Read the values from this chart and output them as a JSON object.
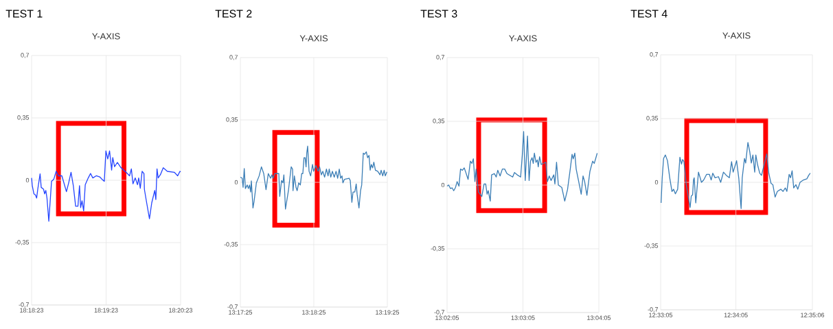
{
  "chart_data": [
    {
      "type": "line",
      "title": "TEST 1",
      "subtitle": "Y-AXIS",
      "color": "#2444ff",
      "grid": true,
      "xlim": [
        18.30639,
        18.33972
      ],
      "ylim": [
        -0.7,
        0.7
      ],
      "xticks": [
        {
          "value": 18.30639,
          "label": "18:18:23"
        },
        {
          "value": 18.32306,
          "label": "18:19:23"
        },
        {
          "value": 18.33972,
          "label": "18:20:23"
        }
      ],
      "yticks": [
        {
          "value": -0.7,
          "label": "-0,7"
        },
        {
          "value": -0.35,
          "label": "-0,35"
        },
        0,
        {
          "value": 0.35,
          "label": "0,35"
        },
        {
          "value": 0.7,
          "label": "0,7"
        }
      ],
      "x": [
        18.30639,
        18.30654,
        18.3069,
        18.30726,
        18.30752,
        18.30777,
        18.30829,
        18.30854,
        18.30906,
        18.30931,
        18.30957,
        18.30983,
        18.31024,
        18.31085,
        18.31136,
        18.31188,
        18.31239,
        18.31316,
        18.31418,
        18.3147,
        18.31521,
        18.31572,
        18.31624,
        18.31675,
        18.31711,
        18.31736,
        18.31767,
        18.31803,
        18.31839,
        18.31906,
        18.31957,
        18.32008,
        18.32085,
        18.32162,
        18.32213,
        18.32265,
        18.32301,
        18.32342,
        18.32383,
        18.32429,
        18.32454,
        18.32495,
        18.32557,
        18.32639,
        18.32752,
        18.32829,
        18.3287,
        18.32906,
        18.32957,
        18.33008,
        18.33034,
        18.3307,
        18.33111,
        18.33152,
        18.33162,
        18.33213,
        18.33275,
        18.33326,
        18.33393,
        18.33418,
        18.33444,
        18.3347,
        18.33521,
        18.33583,
        18.33675,
        18.33829,
        18.33906,
        18.33957,
        18.33972
      ],
      "values": [
        0.013,
        -0.03,
        -0.076,
        -0.083,
        -0.1,
        -0.05,
        0.036,
        -0.04,
        -0.05,
        -0.076,
        -0.057,
        -0.1,
        -0.23,
        -0.006,
        0.006,
        0.05,
        0.025,
        0.025,
        -0.064,
        -0.013,
        0.045,
        -0.03,
        -0.146,
        -0.146,
        -0.03,
        -0.153,
        -0.115,
        -0.172,
        -0.025,
        0.013,
        0.038,
        0.013,
        0.025,
        0.019,
        0.006,
        -0.006,
        0.165,
        0.12,
        0.165,
        0.057,
        0.127,
        0.076,
        0.1,
        0.07,
        0.045,
        0.025,
        0.064,
        -0.02,
        0.013,
        -0.025,
        0.013,
        -0.045,
        0.05,
        0.038,
        -0.051,
        -0.127,
        -0.216,
        -0.127,
        -0.057,
        -0.108,
        0.064,
        0.013,
        0.032,
        0.07,
        0.05,
        0.045,
        0.025,
        0.05,
        0.047
      ]
    },
    {
      "type": "line",
      "title": "TEST 2",
      "subtitle": "Y-AXIS",
      "color": "#3a7db5",
      "grid": true,
      "xlim": [
        13.29028,
        13.32361
      ],
      "ylim": [
        -0.7,
        0.7
      ],
      "xticks": [
        {
          "value": 13.29028,
          "label": "13:17:25"
        },
        {
          "value": 13.30694,
          "label": "13:18:25"
        },
        {
          "value": 13.32361,
          "label": "13:19:25"
        }
      ],
      "yticks": [
        {
          "value": -0.7,
          "label": "-0,7"
        },
        {
          "value": -0.35,
          "label": "-0,35"
        },
        0,
        {
          "value": 0.35,
          "label": "0,35"
        },
        {
          "value": 0.7,
          "label": "0,7"
        }
      ],
      "x": [
        13.29028,
        13.2907,
        13.2909,
        13.29116,
        13.29142,
        13.29184,
        13.2921,
        13.29236,
        13.29262,
        13.29277,
        13.29314,
        13.2934,
        13.29391,
        13.29454,
        13.29506,
        13.29558,
        13.2961,
        13.29661,
        13.29713,
        13.29745,
        13.2977,
        13.29807,
        13.299,
        13.29921,
        13.29963,
        13.29994,
        13.30015,
        13.30051,
        13.30118,
        13.30181,
        13.30212,
        13.30222,
        13.30253,
        13.3029,
        13.30316,
        13.30352,
        13.30388,
        13.30419,
        13.30445,
        13.30471,
        13.30497,
        13.30518,
        13.30534,
        13.30554,
        13.30586,
        13.30622,
        13.30664,
        13.30689,
        13.30741,
        13.30793,
        13.30824,
        13.30866,
        13.30897,
        13.30939,
        13.3098,
        13.31017,
        13.31043,
        13.31079,
        13.31115,
        13.31157,
        13.31198,
        13.31235,
        13.31271,
        13.31302,
        13.31333,
        13.31354,
        13.3139,
        13.31494,
        13.3152,
        13.31557,
        13.31583,
        13.31624,
        13.31655,
        13.31676,
        13.31718,
        13.31754,
        13.3178,
        13.31816,
        13.31842,
        13.31884,
        13.31915,
        13.31946,
        13.31972,
        13.31998,
        13.32029,
        13.32055,
        13.32091,
        13.32143,
        13.32195,
        13.32221,
        13.32257,
        13.32289,
        13.32315,
        13.32351
      ],
      "values": [
        0.029,
        0.023,
        -0.028,
        0.077,
        -0.035,
        -0.015,
        -0.035,
        -0.015,
        -0.054,
        0.008,
        -0.144,
        -0.105,
        -0.003,
        0.036,
        0.087,
        0.049,
        -0.041,
        0.049,
        0.023,
        0.042,
        0.023,
        0.049,
        0.049,
        -0.079,
        0.01,
        -0.003,
        0.042,
        -0.15,
        -0.047,
        0.087,
        0.074,
        -0.047,
        0.036,
        -0.028,
        -0.047,
        -0.003,
        -0.015,
        0.049,
        0.049,
        0.138,
        0.138,
        0.087,
        0.164,
        0.203,
        0.062,
        0.036,
        0.1,
        0.062,
        0.094,
        0.062,
        0.087,
        0.042,
        0.062,
        0.029,
        0.074,
        0.036,
        0.074,
        0.029,
        0.062,
        0.029,
        0.062,
        0.023,
        0.074,
        0.023,
        0.036,
        -0.003,
        0.017,
        0.023,
        0.01,
        -0.112,
        -0.054,
        -0.054,
        -0.009,
        -0.067,
        -0.144,
        -0.047,
        -0.015,
        0.164,
        0.157,
        0.171,
        0.138,
        0.151,
        0.068,
        0.1,
        0.081,
        0.113,
        0.068,
        0.062,
        0.042,
        0.068,
        0.036,
        0.068,
        0.036,
        0.059
      ]
    },
    {
      "type": "line",
      "title": "TEST 3",
      "subtitle": "Y-AXIS",
      "color": "#3a7db5",
      "grid": true,
      "xlim": [
        13.03472,
        13.06806
      ],
      "ylim": [
        -0.7,
        0.7
      ],
      "xticks": [
        {
          "value": 13.03472,
          "label": "13:02:05"
        },
        {
          "value": 13.05139,
          "label": "13:03:05"
        },
        {
          "value": 13.06806,
          "label": "13:04:05"
        }
      ],
      "yticks": [
        {
          "value": -0.7,
          "label": "-0,7"
        },
        {
          "value": -0.35,
          "label": "-0,35"
        },
        0,
        {
          "value": 0.35,
          "label": "0,35"
        },
        {
          "value": 0.7,
          "label": "0,7"
        }
      ],
      "x": [
        13.03472,
        13.03507,
        13.03547,
        13.03582,
        13.03618,
        13.03658,
        13.03693,
        13.03733,
        13.03768,
        13.03808,
        13.03849,
        13.03884,
        13.03934,
        13.03984,
        13.04019,
        13.04049,
        13.04084,
        13.0411,
        13.0416,
        13.04235,
        13.04285,
        13.0432,
        13.04351,
        13.04376,
        13.04421,
        13.04451,
        13.04511,
        13.04551,
        13.04586,
        13.04637,
        13.04687,
        13.04737,
        13.04787,
        13.04913,
        13.04953,
        13.05013,
        13.05088,
        13.05124,
        13.05154,
        13.05189,
        13.05239,
        13.05274,
        13.05304,
        13.05339,
        13.05365,
        13.0539,
        13.05425,
        13.05455,
        13.05475,
        13.05505,
        13.0554,
        13.05641,
        13.05676,
        13.05716,
        13.05756,
        13.05816,
        13.05841,
        13.05877,
        13.05917,
        13.05992,
        13.06057,
        13.06118,
        13.06178,
        13.06218,
        13.06243,
        13.06278,
        13.06308,
        13.06359,
        13.06419,
        13.06459,
        13.06494,
        13.06544,
        13.0661,
        13.0667,
        13.06705,
        13.06735,
        13.0677
      ],
      "values": [
        -0.006,
        0,
        -0.019,
        -0.015,
        -0.031,
        -0.013,
        0.019,
        -0.006,
        0.088,
        0.081,
        0.094,
        0.069,
        0.031,
        0.131,
        0.119,
        0.144,
        0.019,
        0.088,
        -0.038,
        -0.063,
        0.006,
        0.006,
        -0.05,
        -0.031,
        -0.088,
        0.056,
        0.063,
        0.044,
        0.081,
        0.05,
        0.088,
        0.088,
        0.063,
        0.044,
        0.069,
        0.056,
        0.044,
        0.163,
        0.294,
        0.025,
        0.269,
        0.025,
        0.131,
        0.15,
        0.119,
        0.175,
        0.125,
        0.138,
        0.1,
        0.156,
        0.113,
        0.125,
        0.019,
        0.05,
        0.025,
        0.056,
        0.006,
        0.125,
        0,
        -0.013,
        -0.088,
        -0.025,
        0.088,
        0.169,
        0.144,
        0.175,
        0.088,
        0.025,
        -0.05,
        0.05,
        0.019,
        -0.056,
        0.075,
        0.131,
        0.119,
        0.144,
        0.175
      ]
    },
    {
      "type": "line",
      "title": "TEST 4",
      "subtitle": "Y-AXIS",
      "color": "#3a7db5",
      "grid": true,
      "xlim": [
        12.55139,
        12.585
      ],
      "ylim": [
        -0.7,
        0.7
      ],
      "xticks": [
        {
          "value": 12.55139,
          "label": "12:33:05"
        },
        {
          "value": 12.56806,
          "label": "12:34:05"
        },
        {
          "value": 12.585,
          "label": "12:35:06"
        }
      ],
      "yticks": [
        {
          "value": -0.7,
          "label": "-0,7"
        },
        {
          "value": -0.35,
          "label": "-0,35"
        },
        0,
        {
          "value": 0.35,
          "label": "0,35"
        },
        {
          "value": 0.7,
          "label": "0,7"
        }
      ],
      "x": [
        12.55149,
        12.55174,
        12.55204,
        12.55244,
        12.5529,
        12.5534,
        12.5539,
        12.55425,
        12.55465,
        12.55516,
        12.55566,
        12.55601,
        12.55626,
        12.55656,
        12.55706,
        12.55792,
        12.55817,
        12.55847,
        12.55867,
        12.55882,
        12.55917,
        12.55977,
        12.56043,
        12.56093,
        12.56158,
        12.56218,
        12.56258,
        12.56294,
        12.56344,
        12.56419,
        12.56469,
        12.5653,
        12.56595,
        12.5666,
        12.5671,
        12.56745,
        12.56821,
        12.56871,
        12.56921,
        12.56946,
        12.56996,
        12.57022,
        12.57072,
        12.57112,
        12.57147,
        12.57182,
        12.57222,
        12.57247,
        12.57288,
        12.57333,
        12.57373,
        12.57488,
        12.57534,
        12.57584,
        12.57624,
        12.57674,
        12.57724,
        12.578,
        12.5785,
        12.579,
        12.57935,
        12.57985,
        12.58016,
        12.58051,
        12.58086,
        12.58136,
        12.58176,
        12.58226,
        12.58302,
        12.58377,
        12.58417,
        12.58452
      ],
      "values": [
        -0.113,
        0.025,
        0.131,
        0.15,
        0.119,
        0.025,
        -0.05,
        -0.038,
        -0.063,
        -0.038,
        0.138,
        0.1,
        0.125,
        0.113,
        -0.013,
        -0.138,
        -0.075,
        -0.069,
        0.013,
        0.025,
        -0.113,
        0.056,
        0,
        0.013,
        0.044,
        0.044,
        0.013,
        0.05,
        0.025,
        0.031,
        0,
        0.056,
        0.038,
        0.025,
        0.113,
        0.056,
        0.119,
        0.019,
        -0.144,
        0.025,
        0.131,
        0.106,
        0.219,
        0.169,
        0.106,
        0.15,
        0.056,
        0.15,
        0.094,
        0.05,
        0.038,
        0.156,
        0.05,
        -0.006,
        -0.013,
        -0.081,
        -0.05,
        -0.038,
        -0.05,
        -0.031,
        -0.05,
        0.044,
        0.025,
        0.063,
        -0.031,
        -0.013,
        -0.038,
        0,
        0.013,
        0.019,
        0.038,
        0.05
      ]
    }
  ]
}
